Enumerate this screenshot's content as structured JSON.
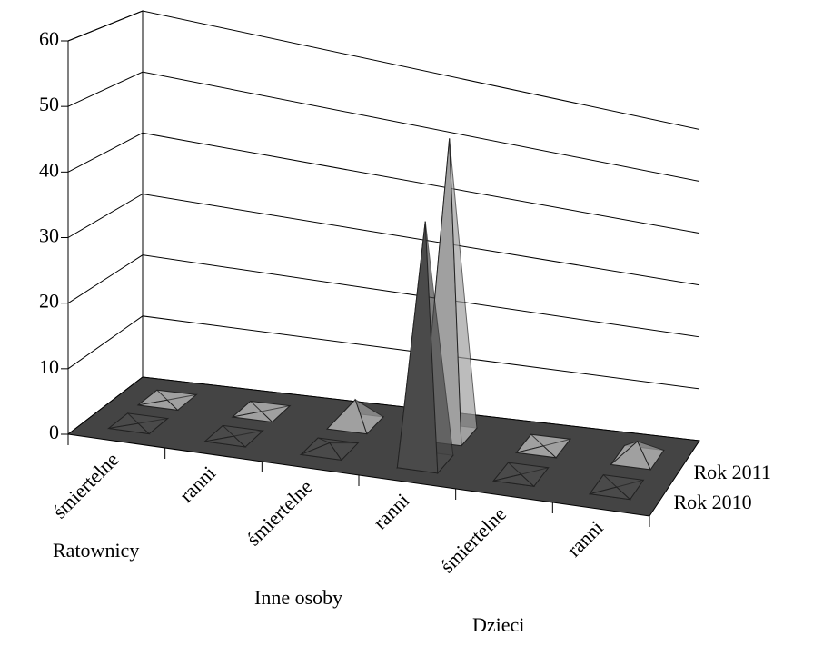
{
  "chart_data": {
    "type": "pyramid3d",
    "categories": [
      "śmiertelne",
      "ranni",
      "śmiertelne",
      "ranni",
      "śmiertelne",
      "ranni"
    ],
    "groups": [
      "Ratownicy",
      "Inne osoby",
      "Dzieci"
    ],
    "series": [
      {
        "name": "Rok 2010",
        "color": "#4a4a4a",
        "values": [
          0,
          0,
          1,
          41,
          0,
          0
        ]
      },
      {
        "name": "Rok 2011",
        "color": "#a0a0a0",
        "values": [
          0,
          0,
          4,
          52,
          0,
          3
        ]
      }
    ],
    "ylim": [
      0,
      60
    ],
    "yticks": [
      0,
      10,
      20,
      30,
      40,
      50,
      60
    ],
    "grid": true
  }
}
